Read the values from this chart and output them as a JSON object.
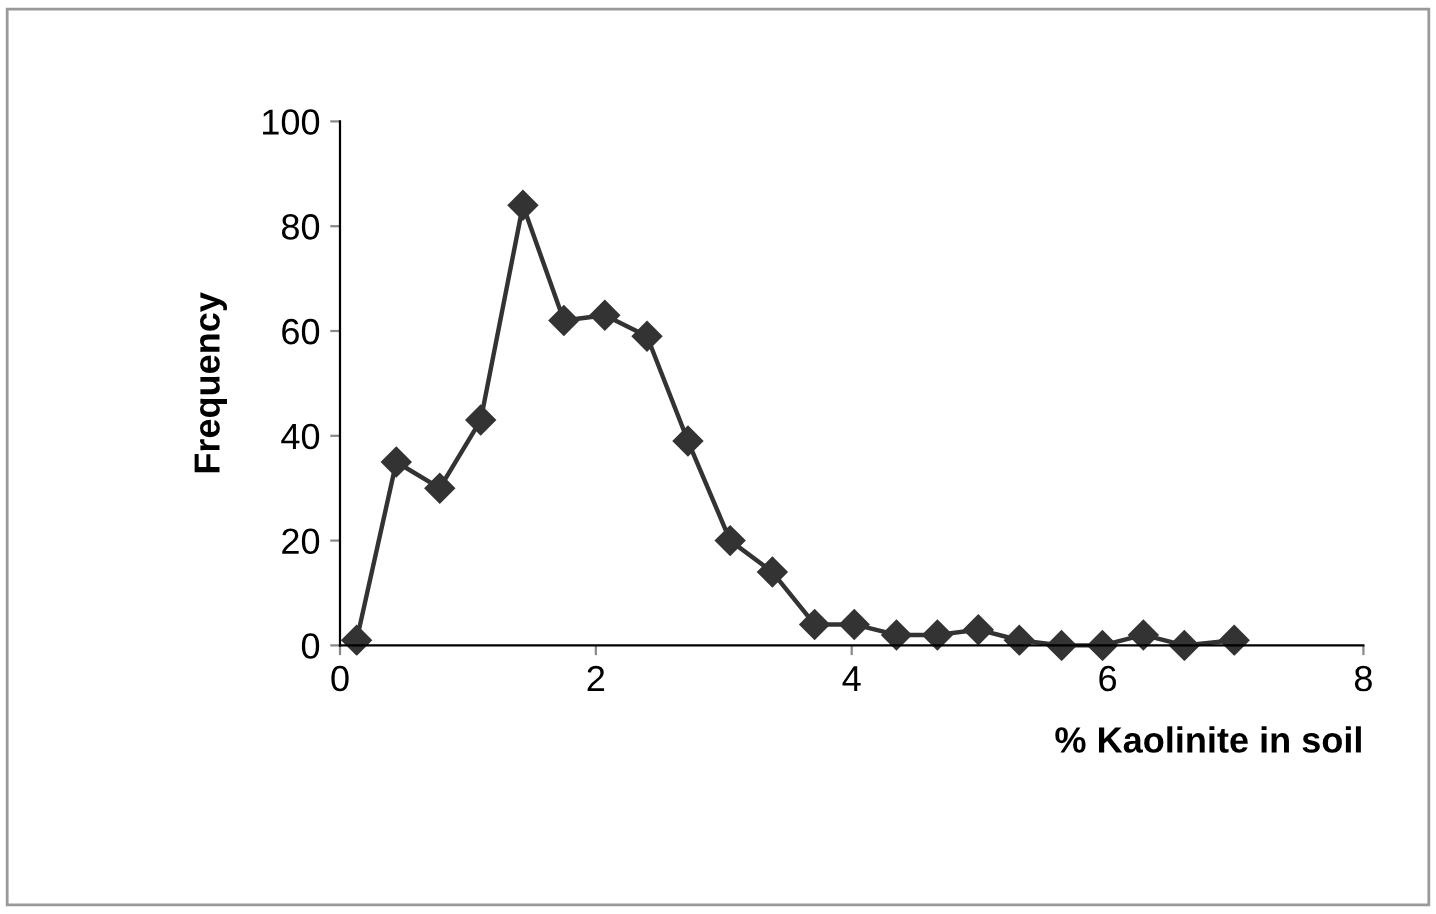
{
  "chart_data": {
    "type": "line",
    "xlabel": "% Kaolinite in soil",
    "ylabel": "Frequency",
    "x": [
      0.13,
      0.44,
      0.78,
      1.1,
      1.43,
      1.75,
      2.07,
      2.4,
      2.72,
      3.05,
      3.38,
      3.71,
      4.02,
      4.35,
      4.67,
      4.99,
      5.31,
      5.64,
      5.96,
      6.28,
      6.6,
      6.99
    ],
    "values": [
      1,
      35,
      30,
      43,
      84,
      62,
      63,
      59,
      39,
      20,
      14,
      4,
      4,
      2,
      2,
      3,
      1,
      0,
      0,
      2,
      0,
      1
    ],
    "color": "#333333",
    "marker": "diamond",
    "line_style": "solid",
    "grid": false,
    "xlim": [
      0,
      8
    ],
    "xticks": [
      0,
      2,
      4,
      6,
      8
    ],
    "ylim": [
      0,
      100
    ],
    "yticks": [
      0,
      20,
      40,
      60,
      80,
      100
    ]
  }
}
